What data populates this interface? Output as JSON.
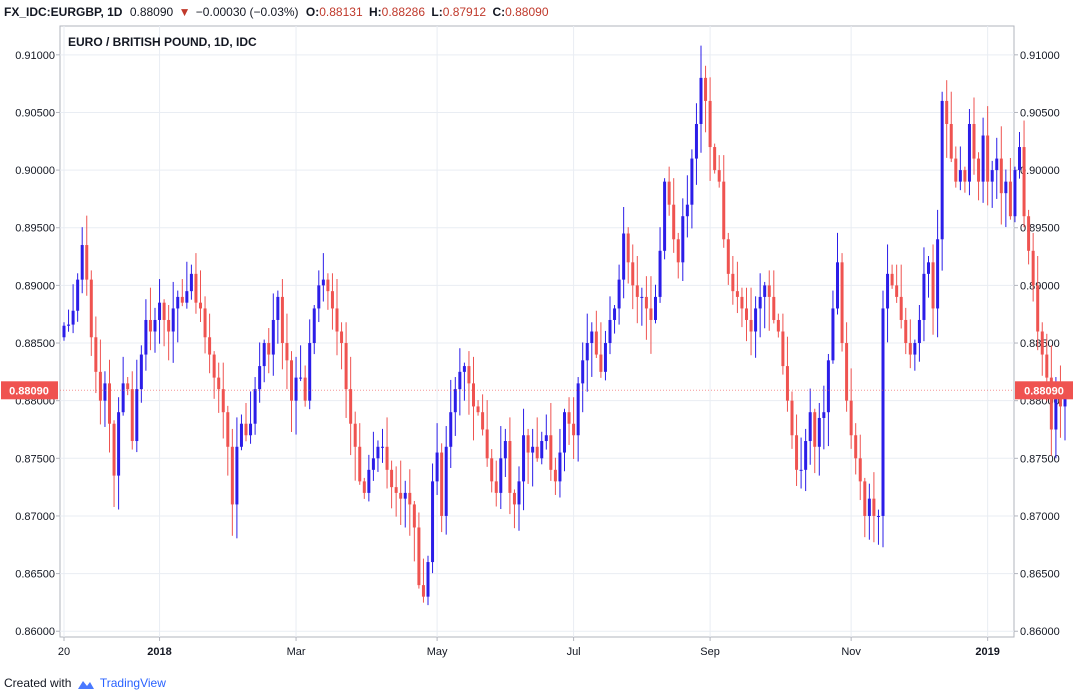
{
  "header": {
    "symbol": "FX_IDC:EURGBP, 1D",
    "last": "0.88090",
    "change": "−0.00030 (−0.03%)",
    "open_label": "O:",
    "open": "0.88131",
    "high_label": "H:",
    "high": "0.88286",
    "low_label": "L:",
    "low": "0.87912",
    "close_label": "C:",
    "close": "0.88090"
  },
  "footer": {
    "created_with": "Created with",
    "brand": "TradingView"
  },
  "colors": {
    "up": "#2b1de8",
    "down": "#ef5350",
    "grid": "#e9edf3",
    "axis": "#787b86",
    "price_label_bg": "#ef5350"
  },
  "chart_data": {
    "type": "candlestick",
    "title": "EURO / BRITISH POUND, 1D, IDC",
    "xlabel": "",
    "ylabel": "",
    "ylim": [
      0.8595,
      0.9125
    ],
    "y_ticks": [
      "0.91000",
      "0.90500",
      "0.90000",
      "0.89500",
      "0.89000",
      "0.88500",
      "0.88000",
      "0.87500",
      "0.87000",
      "0.86500",
      "0.86000"
    ],
    "x_ticks": [
      {
        "label": "20",
        "bar": 0,
        "bold": false
      },
      {
        "label": "2018",
        "bar": 21,
        "bold": true
      },
      {
        "label": "Mar",
        "bar": 51,
        "bold": false
      },
      {
        "label": "May",
        "bar": 82,
        "bold": false
      },
      {
        "label": "Jul",
        "bar": 112,
        "bold": false
      },
      {
        "label": "Sep",
        "bar": 142,
        "bold": false
      },
      {
        "label": "Nov",
        "bar": 173,
        "bold": false
      },
      {
        "label": "2019",
        "bar": 203,
        "bold": true
      }
    ],
    "last_price_label": "0.88090",
    "last_price": 0.8809,
    "grid": true,
    "closes": [
      0.8865,
      0.8866,
      0.8878,
      0.8905,
      0.8935,
      0.8905,
      0.8855,
      0.8825,
      0.88,
      0.8815,
      0.878,
      0.8735,
      0.879,
      0.8815,
      0.881,
      0.8765,
      0.881,
      0.884,
      0.887,
      0.886,
      0.887,
      0.8885,
      0.887,
      0.886,
      0.888,
      0.889,
      0.8885,
      0.8895,
      0.891,
      0.8885,
      0.888,
      0.8855,
      0.884,
      0.882,
      0.881,
      0.879,
      0.876,
      0.871,
      0.876,
      0.878,
      0.877,
      0.878,
      0.881,
      0.883,
      0.885,
      0.884,
      0.887,
      0.889,
      0.885,
      0.8835,
      0.88,
      0.882,
      0.882,
      0.88,
      0.885,
      0.888,
      0.89,
      0.8905,
      0.8895,
      0.888,
      0.886,
      0.885,
      0.881,
      0.878,
      0.876,
      0.873,
      0.872,
      0.874,
      0.875,
      0.876,
      0.876,
      0.874,
      0.8725,
      0.872,
      0.8715,
      0.872,
      0.871,
      0.869,
      0.864,
      0.863,
      0.866,
      0.873,
      0.8755,
      0.87,
      0.876,
      0.879,
      0.881,
      0.8825,
      0.883,
      0.8815,
      0.8795,
      0.879,
      0.8775,
      0.875,
      0.873,
      0.872,
      0.875,
      0.8765,
      0.872,
      0.871,
      0.873,
      0.877,
      0.8755,
      0.876,
      0.875,
      0.8765,
      0.877,
      0.874,
      0.873,
      0.8755,
      0.879,
      0.878,
      0.877,
      0.8815,
      0.8835,
      0.885,
      0.886,
      0.884,
      0.8825,
      0.885,
      0.887,
      0.888,
      0.8905,
      0.8945,
      0.892,
      0.89,
      0.889,
      0.889,
      0.888,
      0.887,
      0.889,
      0.893,
      0.899,
      0.897,
      0.894,
      0.892,
      0.896,
      0.897,
      0.901,
      0.904,
      0.908,
      0.906,
      0.902,
      0.9,
      0.899,
      0.894,
      0.891,
      0.8895,
      0.889,
      0.888,
      0.887,
      0.886,
      0.888,
      0.889,
      0.89,
      0.889,
      0.887,
      0.886,
      0.883,
      0.88,
      0.877,
      0.874,
      0.874,
      0.8765,
      0.879,
      0.876,
      0.8785,
      0.879,
      0.8835,
      0.888,
      0.892,
      0.885,
      0.88,
      0.877,
      0.875,
      0.873,
      0.87,
      0.8715,
      0.87,
      0.87,
      0.888,
      0.891,
      0.89,
      0.889,
      0.887,
      0.885,
      0.884,
      0.885,
      0.887,
      0.891,
      0.892,
      0.888,
      0.894,
      0.906,
      0.904,
      0.901,
      0.899,
      0.9,
      0.899,
      0.904,
      0.901,
      0.899,
      0.903,
      0.899,
      0.9,
      0.901,
      0.898,
      0.899,
      0.896,
      0.9,
      0.902,
      0.896,
      0.893,
      0.89,
      0.886,
      0.884,
      0.882,
      0.8775,
      0.881,
      0.8795,
      0.8809
    ]
  }
}
